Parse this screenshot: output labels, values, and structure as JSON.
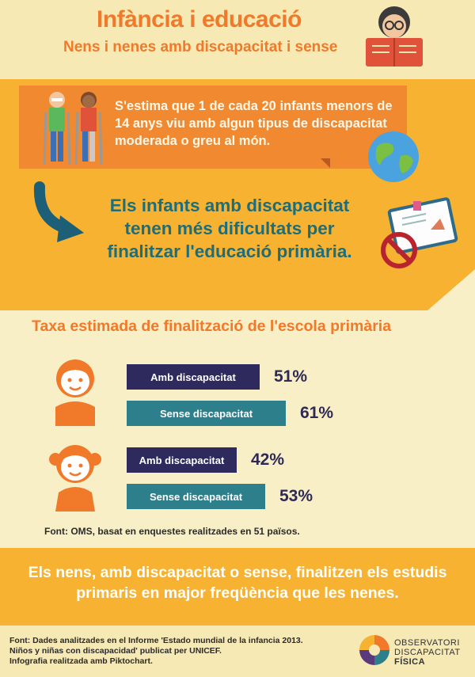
{
  "header": {
    "title": "Infància i educació",
    "subtitle": "Nens i nenes amb discapacitat i sense"
  },
  "intro": {
    "statement": "S'estima que 1 de cada 20 infants menors de 14 anys viu amb algun tipus de discapacitat moderada o greu al món."
  },
  "highlight": {
    "text": "Els infants amb discapacitat tenen més dificultats per finalitzar l'educació primària."
  },
  "chart_data": {
    "type": "bar",
    "title": "Taxa estimada de finalització de l'escola primària",
    "categories": [
      "Amb discapacitat",
      "Sense discapacitat"
    ],
    "series": [
      {
        "values": [
          51,
          61
        ],
        "labels": [
          "51%",
          "61%"
        ]
      },
      {
        "values": [
          42,
          53
        ],
        "labels": [
          "42%",
          "53%"
        ]
      }
    ],
    "colors": {
      "amb": "#2e2a5e",
      "sense": "#2d7f8c"
    },
    "source": "Font: OMS, basat en enquestes realitzades en 51 països."
  },
  "conclusion": {
    "text": "Els nens, amb discapacitat o sense, finalitzen els estudis primaris en major freqüència que les nenes."
  },
  "footer": {
    "source_lines": [
      "Font: Dades analitzades en el Informe 'Estado mundial de la infancia 2013.",
      "Niños y niñas con discapacidad' publicat per UNICEF.",
      "Infografia realitzada amb Piktochart."
    ],
    "logo_lines": [
      "OBSERVATORI",
      "DISCAPACITAT",
      "FÍSICA"
    ]
  },
  "colors": {
    "orange_text": "#f0792a",
    "band": "#f6b230",
    "teal_text": "#1e6d7a"
  }
}
